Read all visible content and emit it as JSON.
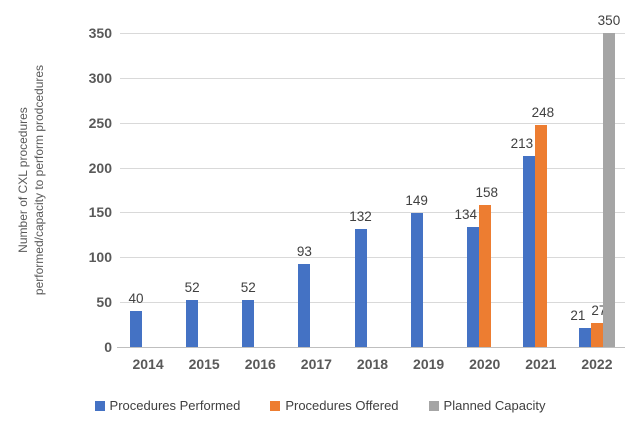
{
  "chart_data": {
    "type": "bar",
    "title": "",
    "categories": [
      "2014",
      "2015",
      "2016",
      "2017",
      "2018",
      "2019",
      "2020",
      "2021",
      "2022"
    ],
    "series": [
      {
        "name": "Procedures Performed",
        "color": "#4472C4",
        "values": [
          40,
          52,
          52,
          93,
          132,
          149,
          134,
          213,
          21
        ]
      },
      {
        "name": "Procedures Offered",
        "color": "#ED7D31",
        "values": [
          null,
          null,
          null,
          null,
          null,
          null,
          158,
          248,
          27
        ]
      },
      {
        "name": "Planned Capacity",
        "color": "#A5A5A5",
        "values": [
          null,
          null,
          null,
          null,
          null,
          null,
          null,
          null,
          350
        ]
      }
    ],
    "ylabel_line1": "Number of CXL procedures",
    "ylabel_line2": "performed/capacity to perform prodcedures",
    "xlabel": "",
    "ylim": [
      0,
      350
    ],
    "yticks": [
      0,
      50,
      100,
      150,
      200,
      250,
      300,
      350
    ],
    "grid": true,
    "data_labels": true,
    "legend_position": "bottom"
  },
  "colors": {
    "gridline": "#d9d9d9",
    "axis_line": "#bfbfbf",
    "tick_text": "#595959",
    "data_label_text": "#404040",
    "background": "#ffffff"
  }
}
